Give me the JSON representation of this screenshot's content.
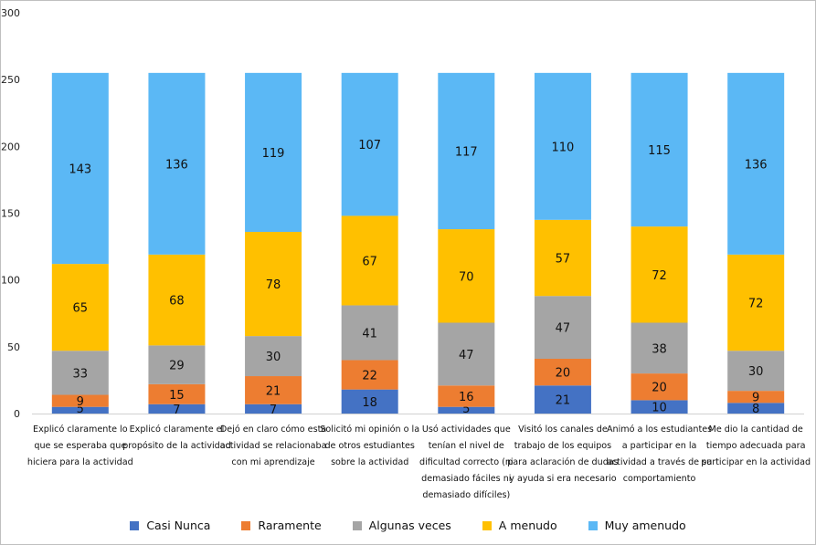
{
  "chart_data": {
    "type": "bar",
    "stacked": true,
    "ylim": [
      0,
      300
    ],
    "yticks": [
      0,
      50,
      100,
      150,
      200,
      250,
      300
    ],
    "grid": false,
    "legend_position": "bottom",
    "categories": [
      "Explicó claramente lo que se esperaba que hiciera para la actividad",
      "Explicó claramente el propósito de la actividad",
      "Dejó en claro cómo esta actividad se relacionaba con mi aprendizaje",
      "Solicitó mi opinión o la de otros estudiantes sobre la actividad",
      "Usó actividades que tenían el nivel de dificultad correcto (ni demasiado fáciles ni demasiado difíciles)",
      "Visitó los canales de trabajo de los equipos para aclaración de dudas y ayuda si era necesario",
      "Animó a los estudiantes a participar en la actividad a través de su comportamiento",
      "Me dio la cantidad de tiempo adecuada para participar en la actividad"
    ],
    "category_lines": [
      [
        "Explicó claramente lo",
        "que se esperaba que",
        "hiciera para la actividad"
      ],
      [
        "Explicó claramente el",
        "propósito de la actividad"
      ],
      [
        "Dejó en claro cómo esta",
        "actividad se relacionaba",
        "con mi aprendizaje"
      ],
      [
        "Solicitó mi opinión o la",
        "de otros estudiantes",
        "sobre la actividad"
      ],
      [
        "Usó actividades que",
        "tenían el nivel de",
        "dificultad correcto (ni",
        "demasiado fáciles ni",
        "demasiado difíciles)"
      ],
      [
        "Visitó los canales de",
        "trabajo de los equipos",
        "para aclaración de dudas",
        "y ayuda si era necesario"
      ],
      [
        "Animó a los estudiantes",
        "a participar en la",
        "actividad a través de su",
        "comportamiento"
      ],
      [
        "Me dio la cantidad de",
        "tiempo adecuada para",
        "participar en la actividad"
      ]
    ],
    "series": [
      {
        "name": "Casi Nunca",
        "color": "#4472C4",
        "values": [
          5,
          7,
          7,
          18,
          5,
          21,
          10,
          8
        ]
      },
      {
        "name": "Raramente",
        "color": "#ED7D31",
        "values": [
          9,
          15,
          21,
          22,
          16,
          20,
          20,
          9
        ]
      },
      {
        "name": "Algunas veces",
        "color": "#A5A5A5",
        "values": [
          33,
          29,
          30,
          41,
          47,
          47,
          38,
          30
        ]
      },
      {
        "name": "A menudo",
        "color": "#FFC000",
        "values": [
          65,
          68,
          78,
          67,
          70,
          57,
          72,
          72
        ]
      },
      {
        "name": "Muy amenudo",
        "color": "#5BB8F5",
        "values": [
          143,
          136,
          119,
          107,
          117,
          110,
          115,
          136
        ]
      }
    ]
  }
}
